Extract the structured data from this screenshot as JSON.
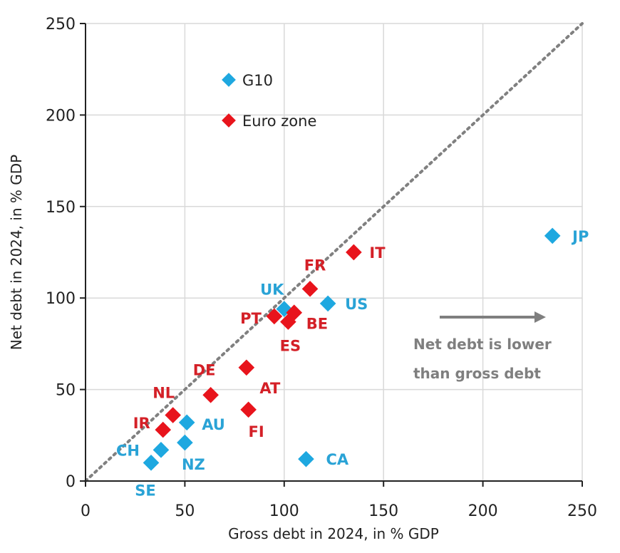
{
  "chart_data": {
    "type": "scatter",
    "title": "",
    "xlabel": "Gross debt in 2024, in % GDP",
    "ylabel": "Net debt in 2024, in % GDP",
    "xlim": [
      0,
      250
    ],
    "ylim": [
      0,
      250
    ],
    "xticks": [
      0,
      50,
      100,
      150,
      200,
      250
    ],
    "yticks": [
      0,
      50,
      100,
      150,
      200,
      250
    ],
    "grid": true,
    "legend_placement": "top-left",
    "reference_line": {
      "type": "y=x",
      "style": "dotted",
      "color": "#808080"
    },
    "annotation": {
      "line1": "Net debt is lower",
      "line2": "than gross debt",
      "arrow": "right"
    },
    "series": [
      {
        "name": "G10",
        "color": "#1ea8e0",
        "label_color": "#2aa3d6",
        "points": [
          {
            "label": "UK",
            "x": 100,
            "y": 94
          },
          {
            "label": "US",
            "x": 122,
            "y": 97
          },
          {
            "label": "JP",
            "x": 235,
            "y": 134
          },
          {
            "label": "AU",
            "x": 51,
            "y": 32
          },
          {
            "label": "NZ",
            "x": 50,
            "y": 21
          },
          {
            "label": "CH",
            "x": 38,
            "y": 17
          },
          {
            "label": "SE",
            "x": 33,
            "y": 10
          },
          {
            "label": "CA",
            "x": 111,
            "y": 12
          }
        ]
      },
      {
        "name": "Euro zone",
        "color": "#e8141c",
        "label_color": "#d42027",
        "points": [
          {
            "label": "IT",
            "x": 135,
            "y": 125
          },
          {
            "label": "FR",
            "x": 113,
            "y": 105
          },
          {
            "label": "PT",
            "x": 95,
            "y": 90
          },
          {
            "label": "BE",
            "x": 105,
            "y": 92
          },
          {
            "label": "ES",
            "x": 102,
            "y": 87
          },
          {
            "label": "DE",
            "x": 63,
            "y": 47
          },
          {
            "label": "AT",
            "x": 81,
            "y": 62
          },
          {
            "label": "FI",
            "x": 82,
            "y": 39
          },
          {
            "label": "NL",
            "x": 44,
            "y": 36
          },
          {
            "label": "IR",
            "x": 39,
            "y": 28
          }
        ]
      }
    ]
  }
}
